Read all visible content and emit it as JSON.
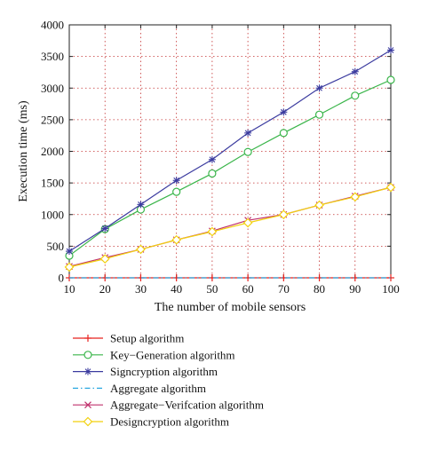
{
  "chart_data": {
    "type": "line",
    "title": "",
    "xlabel": "The number of mobile sensors",
    "ylabel": "Execution time (ms)",
    "xlim": [
      10,
      100
    ],
    "ylim": [
      0,
      4000
    ],
    "x": [
      10,
      20,
      30,
      40,
      50,
      60,
      70,
      80,
      90,
      100
    ],
    "x_ticks": [
      "10",
      "20",
      "30",
      "40",
      "50",
      "60",
      "70",
      "80",
      "90",
      "100"
    ],
    "y_ticks": [
      "0",
      "500",
      "1000",
      "1500",
      "2000",
      "2500",
      "3000",
      "3500",
      "4000"
    ],
    "grid": true,
    "legend_position": "below",
    "series": [
      {
        "name": "Setup algorithm",
        "color": "#e8231f",
        "marker": "plus",
        "dash": "solid",
        "values": [
          0,
          0,
          0,
          0,
          0,
          0,
          0,
          0,
          0,
          0
        ]
      },
      {
        "name": "Key−Generation algorithm",
        "color": "#3ab54a",
        "marker": "circle",
        "dash": "solid",
        "values": [
          350,
          770,
          1080,
          1360,
          1650,
          1990,
          2290,
          2580,
          2880,
          3130
        ]
      },
      {
        "name": "Signcryption algorithm",
        "color": "#3b3b9f",
        "marker": "star",
        "dash": "solid",
        "values": [
          420,
          780,
          1160,
          1540,
          1870,
          2290,
          2620,
          3000,
          3260,
          3600
        ]
      },
      {
        "name": "Aggregate algorithm",
        "color": "#2aa7e0",
        "marker": "none",
        "dash": "dashdot",
        "values": [
          0,
          0,
          0,
          0,
          0,
          0,
          0,
          0,
          0,
          0
        ]
      },
      {
        "name": "Aggregate−Verifcation algorithm",
        "color": "#c0306c",
        "marker": "x",
        "dash": "solid",
        "values": [
          180,
          320,
          450,
          600,
          740,
          910,
          1000,
          1150,
          1290,
          1430
        ]
      },
      {
        "name": "Designcryption algorithm",
        "color": "#f2d10f",
        "marker": "diamond",
        "dash": "solid",
        "values": [
          170,
          300,
          450,
          600,
          730,
          870,
          1000,
          1150,
          1280,
          1430
        ]
      }
    ]
  }
}
